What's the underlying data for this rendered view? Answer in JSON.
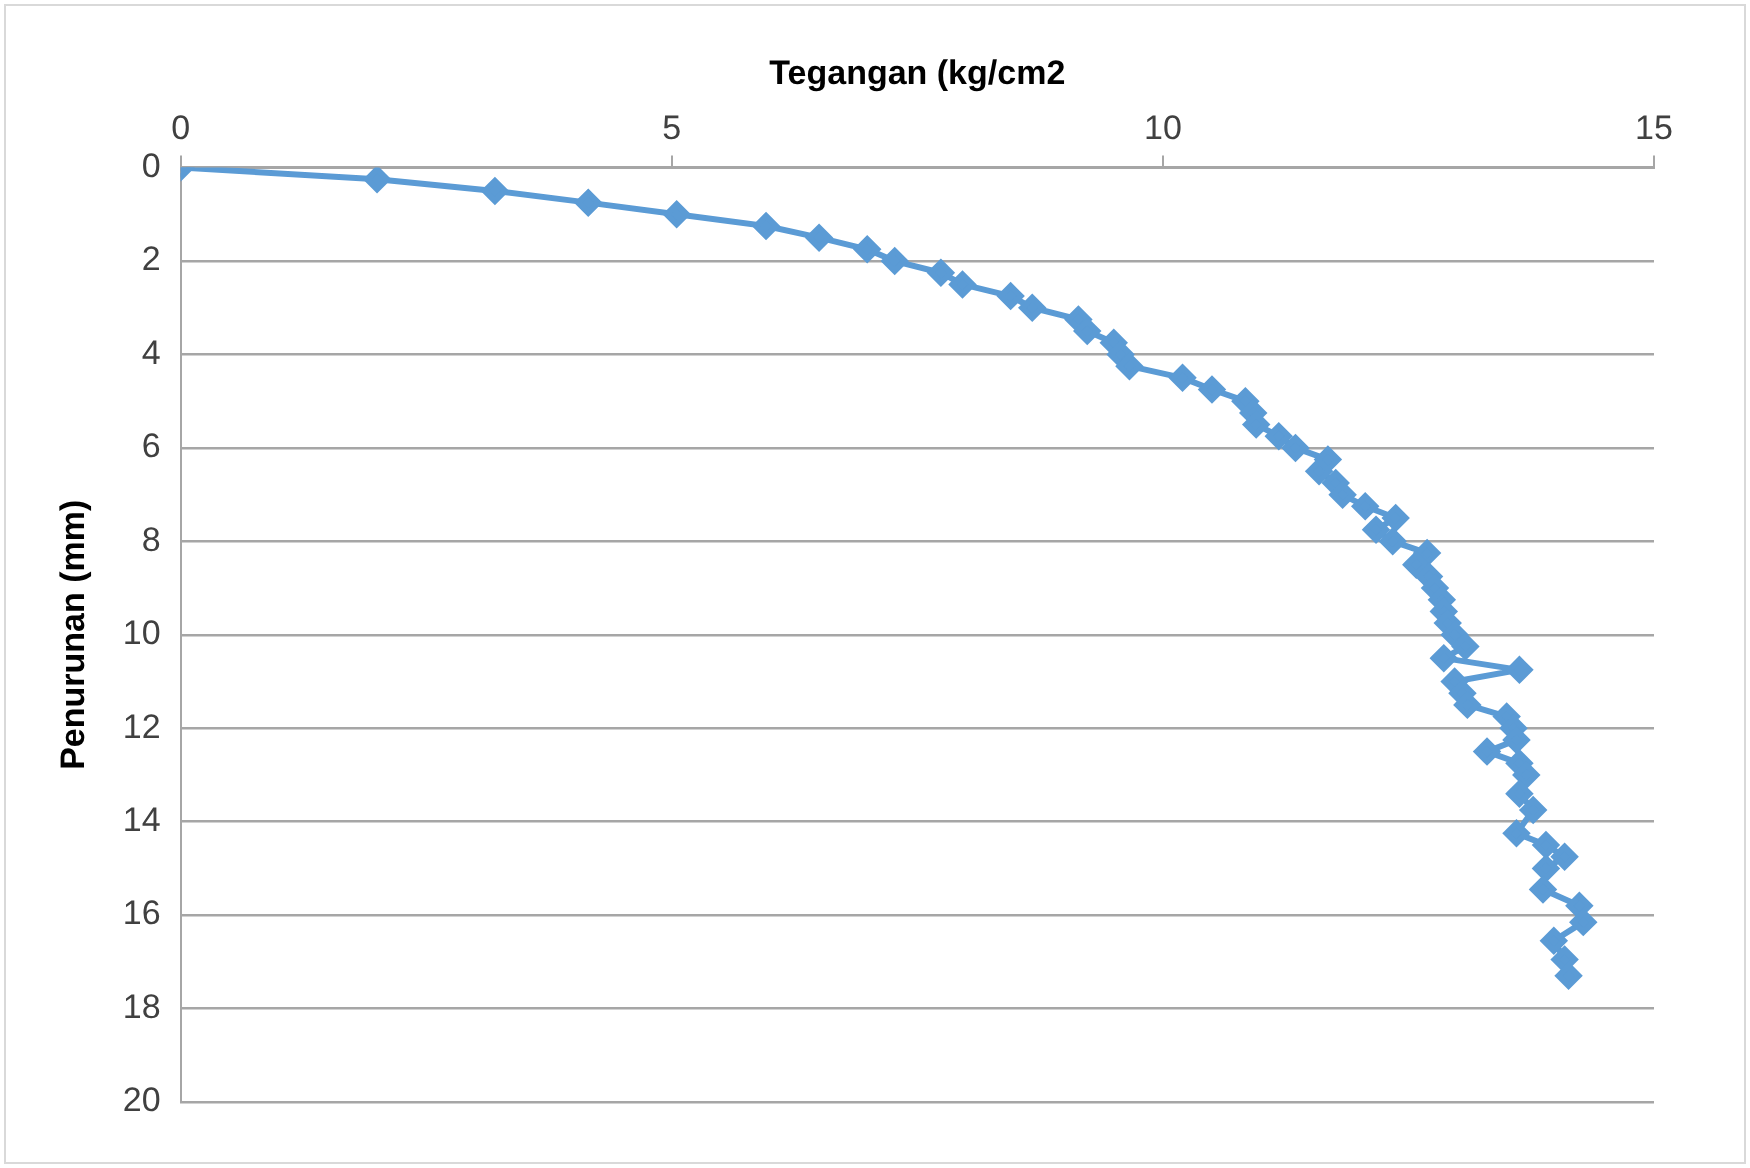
{
  "chart_data": {
    "type": "line",
    "xlabel": "Tegangan (kg/cm2",
    "ylabel": "Penurunan (mm)",
    "x": [
      0,
      2.0,
      3.2,
      4.15,
      5.05,
      5.96,
      6.5,
      6.99,
      7.27,
      7.74,
      7.96,
      8.45,
      8.67,
      9.14,
      9.23,
      9.5,
      9.57,
      9.66,
      10.2,
      10.5,
      10.84,
      10.92,
      10.95,
      11.18,
      11.35,
      11.68,
      11.59,
      11.76,
      11.83,
      12.06,
      12.37,
      12.17,
      12.34,
      12.69,
      12.58,
      12.71,
      12.77,
      12.84,
      12.86,
      12.9,
      12.97,
      13.08,
      12.86,
      13.63,
      12.97,
      13.05,
      13.1,
      13.5,
      13.57,
      13.6,
      13.3,
      13.63,
      13.7,
      13.63,
      13.77,
      13.6,
      13.9,
      14.09,
      13.9,
      13.87,
      14.24,
      14.28,
      13.98,
      14.09,
      14.13
    ],
    "series": [
      {
        "color": "#5b9bd5",
        "values": [
          0,
          0.25,
          0.5,
          0.75,
          1.0,
          1.25,
          1.5,
          1.75,
          2.0,
          2.25,
          2.5,
          2.75,
          3.0,
          3.25,
          3.5,
          3.75,
          4.0,
          4.25,
          4.5,
          4.75,
          5.0,
          5.25,
          5.5,
          5.75,
          6.0,
          6.25,
          6.5,
          6.75,
          7.0,
          7.25,
          7.5,
          7.75,
          8.0,
          8.25,
          8.5,
          8.75,
          9.0,
          9.25,
          9.5,
          9.75,
          10.0,
          10.25,
          10.5,
          10.75,
          11.0,
          11.25,
          11.5,
          11.75,
          12.0,
          12.25,
          12.5,
          12.75,
          13.0,
          13.4,
          13.75,
          14.25,
          14.5,
          14.75,
          15.0,
          15.45,
          15.8,
          16.15,
          16.55,
          16.95,
          17.3
        ]
      }
    ],
    "xlim": [
      0,
      15
    ],
    "xticks": [
      0,
      5,
      10,
      15
    ],
    "ylim": [
      20,
      0
    ],
    "yticks": [
      0,
      2,
      4,
      6,
      8,
      10,
      12,
      14,
      16,
      18,
      20
    ],
    "grid": "y",
    "legend": false,
    "marker": "diamond",
    "line_style": "solid"
  }
}
